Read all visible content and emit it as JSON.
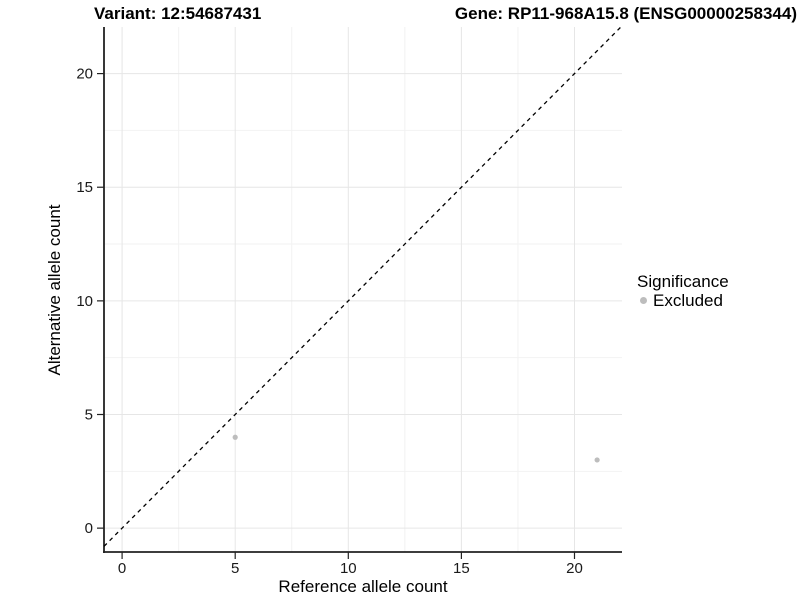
{
  "chart_data": {
    "type": "scatter",
    "title_left": "Variant: 12:54687431",
    "title_right": "Gene: RP11-968A15.8 (ENSG00000258344)",
    "xlabel": "Reference allele count",
    "ylabel": "Alternative allele count",
    "x_ticks": [
      0,
      5,
      10,
      15,
      20
    ],
    "y_ticks": [
      0,
      5,
      10,
      15,
      20
    ],
    "x_minor_ticks": [
      2.5,
      7.5,
      12.5,
      17.5
    ],
    "y_minor_ticks": [
      2.5,
      7.5,
      12.5,
      17.5
    ],
    "xlim": [
      -0.8,
      22.1
    ],
    "ylim": [
      -1.05,
      22.05
    ],
    "grid": true,
    "identity_line": {
      "style": "dashed",
      "slope": 1,
      "intercept": 0,
      "color": "#000000"
    },
    "series": [
      {
        "name": "Excluded",
        "color": "#bdbdbd",
        "points": [
          [
            5,
            4
          ],
          [
            21,
            3
          ]
        ]
      }
    ],
    "legend": {
      "title": "Significance",
      "position": "right",
      "entries": [
        {
          "label": "Excluded",
          "color": "#bdbdbd"
        }
      ]
    },
    "colors": {
      "background": "#ffffff",
      "axis_line": "#222222",
      "major_grid": "#e6e6e6",
      "minor_grid": "#f2f2f2",
      "tick_label": "#1a1a1a"
    }
  }
}
